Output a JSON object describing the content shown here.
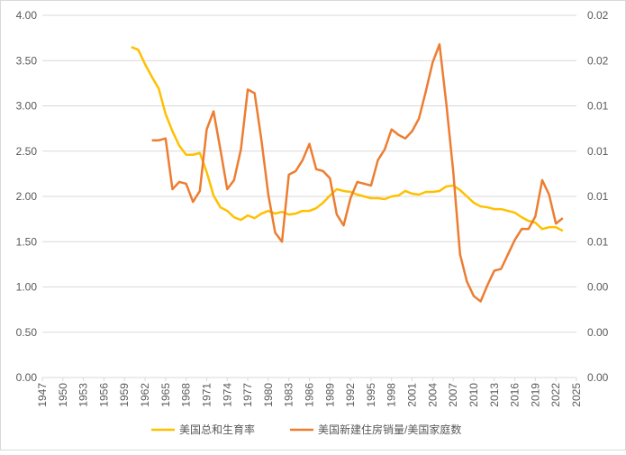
{
  "chart_data": {
    "type": "line",
    "x": [
      1960,
      1961,
      1962,
      1963,
      1964,
      1965,
      1966,
      1967,
      1968,
      1969,
      1970,
      1971,
      1972,
      1973,
      1974,
      1975,
      1976,
      1977,
      1978,
      1979,
      1980,
      1981,
      1982,
      1983,
      1984,
      1985,
      1986,
      1987,
      1988,
      1989,
      1990,
      1991,
      1992,
      1993,
      1994,
      1995,
      1996,
      1997,
      1998,
      1999,
      2000,
      2001,
      2002,
      2003,
      2004,
      2005,
      2006,
      2007,
      2008,
      2009,
      2010,
      2011,
      2012,
      2013,
      2014,
      2015,
      2016,
      2017,
      2018,
      2019,
      2020,
      2021,
      2022,
      2023
    ],
    "xlim": [
      1947,
      2025
    ],
    "xticks": [
      1947,
      1950,
      1953,
      1956,
      1959,
      1962,
      1965,
      1968,
      1971,
      1974,
      1977,
      1980,
      1983,
      1986,
      1989,
      1992,
      1995,
      1998,
      2001,
      2004,
      2007,
      2010,
      2013,
      2016,
      2019,
      2022,
      2025
    ],
    "ylim": [
      0,
      4
    ],
    "yticks": [
      {
        "value": 0,
        "label": "0.00"
      },
      {
        "value": 0.5,
        "label": "0.50"
      },
      {
        "value": 1,
        "label": "1.00"
      },
      {
        "value": 1.5,
        "label": "1.50"
      },
      {
        "value": 2,
        "label": "2.00"
      },
      {
        "value": 2.5,
        "label": "2.50"
      },
      {
        "value": 3,
        "label": "3.00"
      },
      {
        "value": 3.5,
        "label": "3.50"
      },
      {
        "value": 4,
        "label": "4.00"
      }
    ],
    "y2lim": [
      0,
      0.02
    ],
    "y2ticks": [
      {
        "value": 0,
        "label": "0.00"
      },
      {
        "value": 0.0025,
        "label": "0.00"
      },
      {
        "value": 0.005,
        "label": "0.00"
      },
      {
        "value": 0.0075,
        "label": "0.01"
      },
      {
        "value": 0.01,
        "label": "0.01"
      },
      {
        "value": 0.0125,
        "label": "0.01"
      },
      {
        "value": 0.015,
        "label": "0.01"
      },
      {
        "value": 0.0175,
        "label": "0.02"
      },
      {
        "value": 0.02,
        "label": "0.02"
      }
    ],
    "grid": true,
    "legend": "bottom",
    "series": [
      {
        "name": "美国总和生育率",
        "color": "#ffc000",
        "values": [
          3.65,
          3.62,
          3.46,
          3.32,
          3.19,
          2.91,
          2.72,
          2.56,
          2.46,
          2.46,
          2.48,
          2.27,
          2.01,
          1.88,
          1.84,
          1.77,
          1.74,
          1.79,
          1.76,
          1.81,
          1.84,
          1.81,
          1.83,
          1.8,
          1.81,
          1.84,
          1.84,
          1.87,
          1.93,
          2.01,
          2.08,
          2.06,
          2.05,
          2.02,
          2.0,
          1.98,
          1.98,
          1.97,
          2.0,
          2.01,
          2.06,
          2.03,
          2.02,
          2.05,
          2.05,
          2.06,
          2.11,
          2.12,
          2.07,
          2.0,
          1.93,
          1.89,
          1.88,
          1.86,
          1.86,
          1.84,
          1.82,
          1.77,
          1.73,
          1.71,
          1.64,
          1.66,
          1.66,
          1.62
        ]
      },
      {
        "name": "美国新建住房销量/美国家庭数",
        "color": "#ed7d31",
        "axis": "y2",
        "values": [
          null,
          null,
          null,
          0.0131,
          0.0131,
          0.0132,
          0.0104,
          0.0108,
          0.0107,
          0.0097,
          0.0103,
          0.0137,
          0.0147,
          0.0126,
          0.0104,
          0.0109,
          0.0126,
          0.0159,
          0.0157,
          0.0131,
          0.0101,
          0.008,
          0.0075,
          0.0112,
          0.0114,
          0.012,
          0.0129,
          0.0115,
          0.0114,
          0.011,
          0.009,
          0.0084,
          0.0099,
          0.0108,
          0.0107,
          0.0106,
          0.012,
          0.0126,
          0.0137,
          0.0134,
          0.0132,
          0.0136,
          0.0143,
          0.0158,
          0.0174,
          0.0184,
          0.0151,
          0.0114,
          0.0068,
          0.0053,
          0.0045,
          0.0042,
          0.0051,
          0.0059,
          0.006,
          0.0068,
          0.0076,
          0.0082,
          0.0082,
          0.0089,
          0.0109,
          0.0101,
          0.0085,
          0.0088
        ]
      }
    ]
  }
}
